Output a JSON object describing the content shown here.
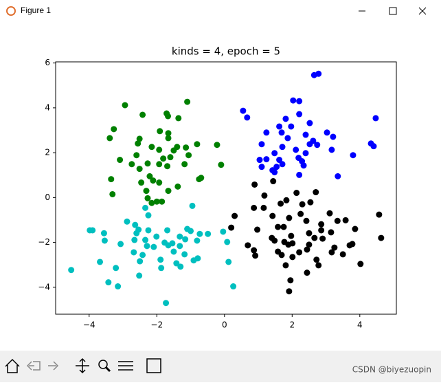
{
  "window": {
    "title": "Figure 1"
  },
  "watermark": "CSDN @biyezuopin",
  "chart_data": {
    "type": "scatter",
    "title": "kinds = 4, epoch = 5",
    "xlim": [
      -4.99,
      5.08
    ],
    "ylim": [
      -5.2,
      6.05
    ],
    "xticks": [
      {
        "value": -4,
        "label": "−4"
      },
      {
        "value": -2,
        "label": "−2"
      },
      0,
      2,
      4
    ],
    "yticks": [
      {
        "value": -4,
        "label": "−4"
      },
      {
        "value": -2,
        "label": "−2"
      },
      0,
      2,
      4,
      6
    ],
    "grid": false,
    "series": [
      {
        "color": "#008000",
        "x": [
          -2.94,
          -1.1,
          -2.42,
          -1.71,
          -1.67,
          -1.36,
          -3.27,
          -3.39,
          -1.91,
          -1.66,
          -2.51,
          -2.56,
          -1.66,
          -0.81,
          -0.22,
          -2.15,
          -1.93,
          -1.4,
          -1.5,
          -1.14,
          -2.6,
          -1.81,
          -1.6,
          -1.06,
          -3.09,
          -2.74,
          -1.93,
          -1.69,
          -1.18,
          -0.1,
          -2.51,
          -2.27,
          -3.35,
          -2.21,
          -2.11,
          -0.69,
          -0.75,
          -2.46,
          -1.93,
          -1.38,
          -2.31,
          -1.66,
          -3.31,
          -2.0,
          -1.85,
          -2.27,
          -2.15
        ],
        "values": [
          4.12,
          4.27,
          3.69,
          3.75,
          3.63,
          3.54,
          3.05,
          2.65,
          2.96,
          2.87,
          2.62,
          2.41,
          2.65,
          2.38,
          2.35,
          2.26,
          2.13,
          2.26,
          2.1,
          2.23,
          1.89,
          1.74,
          1.8,
          1.89,
          1.68,
          1.49,
          1.49,
          1.4,
          1.49,
          1.46,
          1.28,
          1.52,
          0.82,
          0.95,
          0.76,
          0.88,
          0.82,
          0.67,
          0.67,
          0.49,
          0.3,
          0.3,
          0.15,
          -0.18,
          -0.18,
          -0.03,
          -0.24
        ]
      },
      {
        "color": "#0000ff",
        "x": [
          2.78,
          2.65,
          2.03,
          2.21,
          0.55,
          0.67,
          1.81,
          4.47,
          2.21,
          1.62,
          1.97,
          2.52,
          1.24,
          1.69,
          3.03,
          3.21,
          2.4,
          1.87,
          2.62,
          2.52,
          1.71,
          1.1,
          2.74,
          4.33,
          4.41,
          3.17,
          2.11,
          1.48,
          2.4,
          3.8,
          1.24,
          2.19,
          1.04,
          1.62,
          2.29,
          1.71,
          1.54,
          1.1,
          1.42,
          1.48,
          2.21,
          3.35,
          2.34
        ],
        "values": [
          5.52,
          5.46,
          4.33,
          4.3,
          3.87,
          3.57,
          3.51,
          3.54,
          3.72,
          3.17,
          3.17,
          3.32,
          2.9,
          2.9,
          2.9,
          2.71,
          2.8,
          2.65,
          2.53,
          2.38,
          2.26,
          2.38,
          2.35,
          2.41,
          2.29,
          2.13,
          2.13,
          1.98,
          1.98,
          1.89,
          1.71,
          1.77,
          1.68,
          1.68,
          1.62,
          1.49,
          1.37,
          1.37,
          1.22,
          1.13,
          1.01,
          0.95,
          1.43
        ]
      },
      {
        "color": "#000000",
        "x": [
          0.89,
          1.44,
          2.7,
          1.18,
          2.13,
          1.83,
          2.54,
          1.66,
          2.3,
          0.87,
          1.16,
          2.25,
          3.11,
          0.3,
          1.42,
          4.57,
          1.91,
          2.42,
          3.34,
          3.58,
          2.86,
          1.58,
          1.75,
          0.97,
          0.2,
          2.86,
          3.86,
          2.5,
          3.15,
          1.4,
          1.97,
          2.66,
          2.9,
          4.63,
          1.48,
          1.77,
          1.89,
          2.01,
          0.69,
          3.7,
          3.78,
          2.5,
          3.25,
          0.87,
          1.58,
          1.69,
          2.21,
          2.44,
          3.17,
          0.91,
          3.5,
          2.01,
          2.72,
          4.02,
          1.81,
          2.78,
          1.95,
          1.91,
          2.44
        ],
        "values": [
          0.58,
          0.73,
          0.24,
          0.09,
          0.21,
          -0.12,
          -0.21,
          -0.27,
          -0.3,
          -0.46,
          -0.46,
          -0.73,
          -0.7,
          -0.82,
          -0.82,
          -0.76,
          -0.91,
          -1.04,
          -1.04,
          -1.01,
          -1.19,
          -1.31,
          -1.31,
          -1.43,
          -1.34,
          -1.46,
          -1.4,
          -1.59,
          -1.55,
          -1.8,
          -1.71,
          -1.8,
          -1.83,
          -1.8,
          -1.92,
          -1.98,
          -2.1,
          -2.04,
          -2.13,
          -2.13,
          -2.07,
          -2.1,
          -2.23,
          -2.35,
          -2.41,
          -2.56,
          -2.44,
          -2.32,
          -2.44,
          -2.59,
          -2.53,
          -2.65,
          -2.77,
          -2.96,
          -3.02,
          -3.02,
          -3.69,
          -4.18,
          -3.35
        ]
      },
      {
        "color": "#00bfbf",
        "x": [
          -2.34,
          -2.25,
          -0.95,
          -2.88,
          -2.64,
          -3.98,
          -3.9,
          -2.54,
          -2.25,
          -1.1,
          -1.0,
          -3.56,
          -2.6,
          -1.69,
          -2.01,
          -1.32,
          -0.73,
          -0.49,
          -0.04,
          -2.34,
          -1.16,
          -0.81,
          -3.54,
          -3.07,
          -2.66,
          -1.77,
          -1.54,
          0.08,
          -2.29,
          -1.66,
          -1.32,
          -2.68,
          -2.09,
          -2.42,
          -1.5,
          -1.18,
          -0.79,
          -0.91,
          -1.89,
          -3.68,
          -2.5,
          -1.42,
          -1.3,
          -1.87,
          -3.21,
          -4.53,
          -2.52,
          -3.43,
          -3.15,
          0.26,
          -1.73,
          0.12
        ],
        "values": [
          -0.46,
          -0.79,
          -0.37,
          -1.07,
          -1.22,
          -1.46,
          -1.46,
          -1.43,
          -1.46,
          -1.4,
          -1.49,
          -1.59,
          -1.59,
          -1.46,
          -1.74,
          -1.74,
          -1.62,
          -1.62,
          -1.52,
          -1.89,
          -1.86,
          -1.92,
          -1.92,
          -2.07,
          -1.89,
          -2.01,
          -2.04,
          -1.98,
          -2.16,
          -2.13,
          -2.16,
          -2.44,
          -2.2,
          -2.56,
          -2.41,
          -2.53,
          -2.71,
          -2.8,
          -2.77,
          -2.87,
          -2.84,
          -2.93,
          -3.08,
          -3.14,
          -3.14,
          -3.23,
          -3.48,
          -3.78,
          -3.96,
          -3.96,
          -4.7,
          -2.87
        ]
      }
    ]
  }
}
